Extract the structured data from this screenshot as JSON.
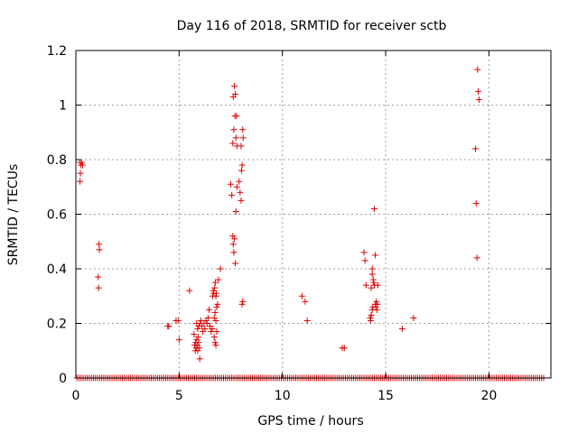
{
  "chart_data": {
    "type": "scatter",
    "title": "Day 116 of 2018, SRMTID for receiver sctb",
    "xlabel": "GPS time / hours",
    "ylabel": "SRMTID / TECUs",
    "xlim": [
      0,
      23
    ],
    "ylim": [
      0,
      1.2
    ],
    "x_ticks": [
      0,
      5,
      10,
      15,
      20
    ],
    "y_ticks": [
      0,
      0.2,
      0.4,
      0.6,
      0.8,
      1,
      1.2
    ],
    "x_tick_labels": [
      "0",
      "5",
      "10",
      "15",
      "20"
    ],
    "y_tick_labels": [
      "0",
      "0.2",
      "0.4",
      "0.6",
      "0.8",
      "1",
      "1.2"
    ],
    "grid": true,
    "marker": "+",
    "color": "#dd0000",
    "baseline": {
      "y": 0,
      "x_start": 0.05,
      "x_end": 22.65,
      "step": 0.1
    },
    "series": [
      {
        "name": "SRMTID",
        "points": [
          [
            0.2,
            0.72
          ],
          [
            0.22,
            0.75
          ],
          [
            0.25,
            0.78
          ],
          [
            0.28,
            0.79
          ],
          [
            0.33,
            0.78
          ],
          [
            0.2,
            0.79
          ],
          [
            1.12,
            0.49
          ],
          [
            1.14,
            0.47
          ],
          [
            1.08,
            0.37
          ],
          [
            1.1,
            0.33
          ],
          [
            4.45,
            0.19
          ],
          [
            4.5,
            0.19
          ],
          [
            4.85,
            0.21
          ],
          [
            4.95,
            0.21
          ],
          [
            5.0,
            0.14
          ],
          [
            5.5,
            0.32
          ],
          [
            5.72,
            0.16
          ],
          [
            5.75,
            0.12
          ],
          [
            5.78,
            0.1
          ],
          [
            5.8,
            0.13
          ],
          [
            5.82,
            0.11
          ],
          [
            5.85,
            0.14
          ],
          [
            5.88,
            0.12
          ],
          [
            5.9,
            0.1
          ],
          [
            5.92,
            0.15
          ],
          [
            5.95,
            0.13
          ],
          [
            5.98,
            0.11
          ],
          [
            5.85,
            0.2
          ],
          [
            5.9,
            0.18
          ],
          [
            5.95,
            0.19
          ],
          [
            6.0,
            0.2
          ],
          [
            6.05,
            0.21
          ],
          [
            6.1,
            0.19
          ],
          [
            6.15,
            0.17
          ],
          [
            6.2,
            0.2
          ],
          [
            6.25,
            0.18
          ],
          [
            6.0,
            0.07
          ],
          [
            6.3,
            0.21
          ],
          [
            6.35,
            0.2
          ],
          [
            6.4,
            0.22
          ],
          [
            6.45,
            0.25
          ],
          [
            6.5,
            0.19
          ],
          [
            6.55,
            0.17
          ],
          [
            6.6,
            0.18
          ],
          [
            6.62,
            0.3
          ],
          [
            6.65,
            0.32
          ],
          [
            6.68,
            0.31
          ],
          [
            6.72,
            0.33
          ],
          [
            6.75,
            0.35
          ],
          [
            6.78,
            0.3
          ],
          [
            6.8,
            0.31
          ],
          [
            6.7,
            0.22
          ],
          [
            6.74,
            0.24
          ],
          [
            6.78,
            0.21
          ],
          [
            6.82,
            0.26
          ],
          [
            6.86,
            0.27
          ],
          [
            6.7,
            0.15
          ],
          [
            6.74,
            0.13
          ],
          [
            6.78,
            0.12
          ],
          [
            6.82,
            0.17
          ],
          [
            6.9,
            0.36
          ],
          [
            7.0,
            0.4
          ],
          [
            7.5,
            0.71
          ],
          [
            7.55,
            0.67
          ],
          [
            7.6,
            0.52
          ],
          [
            7.62,
            0.49
          ],
          [
            7.65,
            0.46
          ],
          [
            7.68,
            0.51
          ],
          [
            7.72,
            0.42
          ],
          [
            7.75,
            0.61
          ],
          [
            7.8,
            0.7
          ],
          [
            7.6,
            0.86
          ],
          [
            7.65,
            0.91
          ],
          [
            7.7,
            0.96
          ],
          [
            7.72,
            1.04
          ],
          [
            7.75,
            0.88
          ],
          [
            7.78,
            0.96
          ],
          [
            7.8,
            0.85
          ],
          [
            7.62,
            1.03
          ],
          [
            7.68,
            1.07
          ],
          [
            7.9,
            0.72
          ],
          [
            7.95,
            0.68
          ],
          [
            8.0,
            0.65
          ],
          [
            8.02,
            0.76
          ],
          [
            8.05,
            0.78
          ],
          [
            8.08,
            0.91
          ],
          [
            8.1,
            0.88
          ],
          [
            8.0,
            0.85
          ],
          [
            8.05,
            0.27
          ],
          [
            8.08,
            0.28
          ],
          [
            10.95,
            0.3
          ],
          [
            11.1,
            0.28
          ],
          [
            11.2,
            0.21
          ],
          [
            12.9,
            0.11
          ],
          [
            13.0,
            0.11
          ],
          [
            13.95,
            0.46
          ],
          [
            14.0,
            0.43
          ],
          [
            14.05,
            0.34
          ],
          [
            14.25,
            0.22
          ],
          [
            14.28,
            0.21
          ],
          [
            14.3,
            0.23
          ],
          [
            14.35,
            0.25
          ],
          [
            14.38,
            0.26
          ],
          [
            14.3,
            0.33
          ],
          [
            14.35,
            0.38
          ],
          [
            14.4,
            0.36
          ],
          [
            14.42,
            0.35
          ],
          [
            14.45,
            0.34
          ],
          [
            14.5,
            0.27
          ],
          [
            14.52,
            0.26
          ],
          [
            14.55,
            0.28
          ],
          [
            14.58,
            0.25
          ],
          [
            14.6,
            0.27
          ],
          [
            14.62,
            0.34
          ],
          [
            14.45,
            0.62
          ],
          [
            14.5,
            0.45
          ],
          [
            14.35,
            0.4
          ],
          [
            15.8,
            0.18
          ],
          [
            16.35,
            0.22
          ],
          [
            19.35,
            0.84
          ],
          [
            19.38,
            0.64
          ],
          [
            19.42,
            0.44
          ],
          [
            19.45,
            1.13
          ],
          [
            19.48,
            1.05
          ],
          [
            19.52,
            1.02
          ]
        ]
      }
    ]
  }
}
